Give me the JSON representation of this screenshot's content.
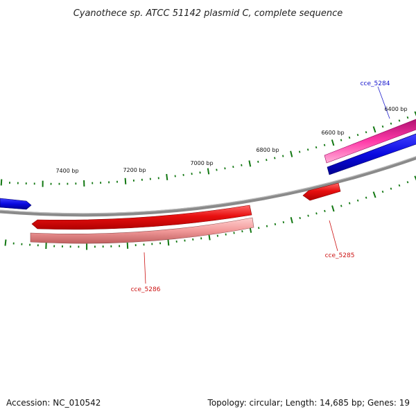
{
  "title": "Cyanothece sp. ATCC 51142 plasmid C, complete sequence",
  "footer": {
    "accession": "Accession: NC_010542",
    "summary": "Topology: circular; Length: 14,685 bp; Genes: 19"
  },
  "colors": {
    "forward_gene": "#e0188c",
    "forward_gene_alt": "#1010e0",
    "reverse_gene": "#e81010",
    "reverse_gene_light": "#f09090",
    "backbone": "#777777",
    "tick": "#117711"
  },
  "tick_labels": [
    {
      "label": "7400 bp"
    },
    {
      "label": "7200 bp"
    },
    {
      "label": "7000 bp"
    },
    {
      "label": "6800 bp"
    },
    {
      "label": "6600 bp"
    },
    {
      "label": "6400 bp"
    }
  ],
  "genes": [
    {
      "name": "cce_5284",
      "color": "#1010cc"
    },
    {
      "name": "cce_5285",
      "color": "#cc1010"
    },
    {
      "name": "cce_5286",
      "color": "#cc1010"
    }
  ]
}
